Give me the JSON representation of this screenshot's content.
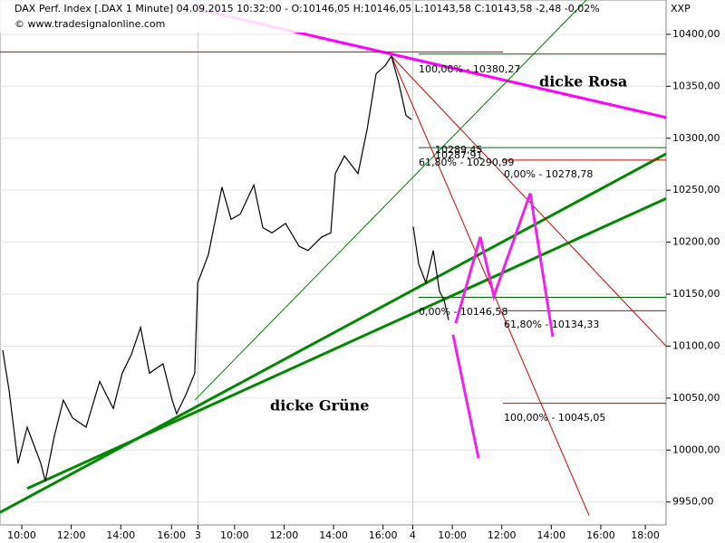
{
  "chart_data": {
    "type": "line",
    "title": "DAX Perf. Index [.DAX  1 Minute] 04.09.2015 10:32:00 - O:10146,05 H:10146,05 L:10143,58 C:10143,58 -2,48 -0,02%",
    "subtitle": "© www.tradesignalonline.com",
    "y_axis_label": "XXP",
    "xlim": [
      0.12,
      27.04
    ],
    "ylim": [
      9928,
      10433
    ],
    "xticks": [
      {
        "value": 1,
        "label": "10:00"
      },
      {
        "value": 3,
        "label": "12:00"
      },
      {
        "value": 5,
        "label": "14:00"
      },
      {
        "value": 7.05,
        "label": "16:00"
      },
      {
        "value": 8.12,
        "label": "3"
      },
      {
        "value": 9.6,
        "label": "10:00"
      },
      {
        "value": 11.6,
        "label": "12:00"
      },
      {
        "value": 13.6,
        "label": "14:00"
      },
      {
        "value": 15.6,
        "label": "16:00"
      },
      {
        "value": 16.8,
        "label": "4"
      },
      {
        "value": 18.4,
        "label": "10:00"
      },
      {
        "value": 20.4,
        "label": "12:00"
      },
      {
        "value": 22.4,
        "label": "14:00"
      },
      {
        "value": 24.4,
        "label": "16:00"
      },
      {
        "value": 26.2,
        "label": "18:00"
      }
    ],
    "yticks": [
      {
        "value": 9950,
        "label": "9950,00"
      },
      {
        "value": 10000,
        "label": "10000,00"
      },
      {
        "value": 10050,
        "label": "10050,00"
      },
      {
        "value": 10100,
        "label": "10100,00"
      },
      {
        "value": 10150,
        "label": "10150,00"
      },
      {
        "value": 10200,
        "label": "10200,00"
      },
      {
        "value": 10250,
        "label": "10250,00"
      },
      {
        "value": 10300,
        "label": "10300,00"
      },
      {
        "value": 10350,
        "label": "10350,00"
      },
      {
        "value": 10400,
        "label": "10400,00"
      }
    ],
    "grid": true,
    "series": [
      {
        "color": "#000000",
        "x": [
          0.23,
          0.49,
          0.85,
          1.22,
          1.77,
          1.95,
          2.32,
          2.68,
          3.05,
          3.6,
          4.15,
          4.7,
          5.06,
          5.43,
          5.8,
          6.16,
          6.71,
          7.08,
          7.26,
          7.63,
          7.99,
          8.11,
          8.54,
          9.09,
          9.46,
          9.83,
          10.38,
          10.74,
          11.11,
          11.66,
          12.21,
          12.57,
          13.12,
          13.49,
          13.67,
          14.04,
          14.59,
          14.96,
          15.32,
          15.69,
          15.94,
          16.24,
          16.53,
          16.75,
          16.78,
          16.82,
          17.04,
          17.33,
          17.63,
          17.88,
          18.07,
          18.25
        ],
        "values": [
          10096,
          10057,
          9987,
          10022,
          9987,
          9970,
          10014,
          10048,
          10031,
          10022,
          10066,
          10040,
          10074,
          10092,
          10118,
          10074,
          10083,
          10048,
          10035,
          10053,
          10074,
          10161,
          10188,
          10253,
          10222,
          10227,
          10255,
          10214,
          10209,
          10218,
          10196,
          10192,
          10205,
          10209,
          10266,
          10283,
          10266,
          10309,
          10362,
          10370,
          10379,
          10353,
          10322,
          10318,
          null,
          10215,
          10179,
          10161,
          10192,
          10153,
          10144,
          10125
        ]
      }
    ],
    "drawings": [
      {
        "color": "#ff00ff",
        "width": 3,
        "x": [
          8.11,
          27.04
        ],
        "y": [
          10424,
          10320
        ]
      },
      {
        "color": "#cc0000",
        "width": 1,
        "x": [
          0.12,
          20.45
        ],
        "y": [
          10383,
          10383
        ]
      },
      {
        "color": "#007700",
        "width": 1,
        "x": [
          7.99,
          24.11
        ],
        "y": [
          10048,
          10440
        ]
      },
      {
        "color": "#008800",
        "width": 3,
        "x": [
          0.12,
          27.04
        ],
        "y": [
          9940,
          10285
        ]
      },
      {
        "color": "#008800",
        "width": 3,
        "x": [
          1.22,
          27.04
        ],
        "y": [
          9963,
          10242
        ]
      },
      {
        "color": "#cc0000",
        "width": 1,
        "x": [
          15.94,
          23.93
        ],
        "y": [
          10379,
          9937
        ]
      },
      {
        "color": "#cc0000",
        "width": 1,
        "x": [
          15.94,
          27.04
        ],
        "y": [
          10379,
          10100
        ]
      },
      {
        "color": "#006600",
        "width": 1,
        "x": [
          17.04,
          27.04
        ],
        "y": [
          10381,
          10381
        ]
      },
      {
        "color": "#006600",
        "width": 1,
        "x": [
          17.04,
          27.04
        ],
        "y": [
          10291,
          10291
        ]
      },
      {
        "color": "#006600",
        "width": 1,
        "x": [
          17.04,
          27.04
        ],
        "y": [
          10147,
          10147
        ]
      },
      {
        "color": "#cc0000",
        "width": 1,
        "x": [
          20.45,
          27.04
        ],
        "y": [
          10279,
          10279
        ]
      },
      {
        "color": "#cc0000",
        "width": 1,
        "x": [
          20.45,
          27.04
        ],
        "y": [
          10134,
          10134
        ]
      },
      {
        "color": "#cc0000",
        "width": 1,
        "x": [
          20.45,
          27.04
        ],
        "y": [
          10045,
          10045
        ]
      },
      {
        "color": "#ee22ee",
        "width": 3,
        "x": [
          18.54,
          19.53,
          20.08,
          21.55,
          22.46
        ],
        "y": [
          10122,
          10205,
          10148,
          10247,
          10109
        ]
      },
      {
        "color": "#ee22ee",
        "width": 3,
        "x": [
          18.43,
          19.46
        ],
        "y": [
          10111,
          9992
        ]
      }
    ],
    "annotations": [
      "100,00% - 10380,27",
      "10289,45",
      "10287,91",
      "61,80% - 10290,99",
      "0,00% - 10278,78",
      "0,00% - 10146,58",
      "61,80% - 10134,33",
      "100,00% - 10045,05",
      "dicke Rosa",
      "dicke Grüne"
    ]
  }
}
